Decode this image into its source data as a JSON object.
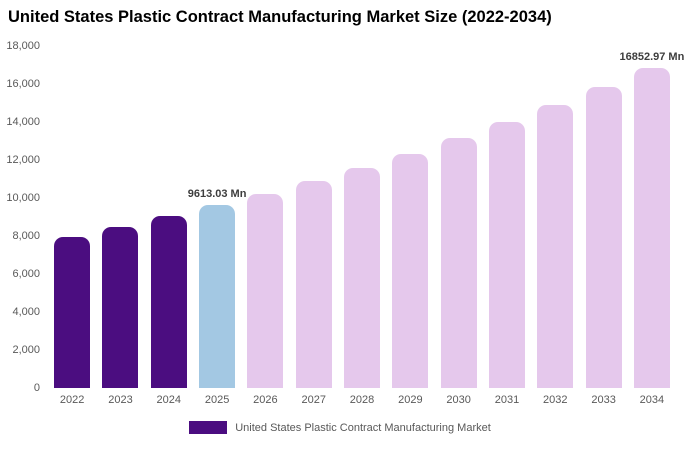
{
  "title": "United States Plastic Contract Manufacturing Market Size (2022-2034)",
  "legend": {
    "label": "United States Plastic Contract Manufacturing Market",
    "color": "#4B0D80"
  },
  "colors": {
    "historical_bar": "#4B0D80",
    "highlight_bar": "#A3C8E3",
    "forecast_bar": "#E5C8EC",
    "axis_text": "#595959",
    "background": "#ffffff"
  },
  "chart_data": {
    "type": "bar",
    "title": "United States Plastic Contract Manufacturing Market Size (2022-2034)",
    "xlabel": "",
    "ylabel": "",
    "categories": [
      "2022",
      "2023",
      "2024",
      "2025",
      "2026",
      "2027",
      "2028",
      "2029",
      "2030",
      "2031",
      "2032",
      "2033",
      "2034"
    ],
    "values": [
      7970,
      8485,
      9030,
      9613.03,
      10232,
      10891,
      11592,
      12339,
      13133,
      13979,
      14879,
      15837,
      16852.97
    ],
    "bar_colors": [
      "#4B0D80",
      "#4B0D80",
      "#4B0D80",
      "#A3C8E3",
      "#E5C8EC",
      "#E5C8EC",
      "#E5C8EC",
      "#E5C8EC",
      "#E5C8EC",
      "#E5C8EC",
      "#E5C8EC",
      "#E5C8EC",
      "#E5C8EC"
    ],
    "annotations": [
      {
        "category": "2025",
        "text": "9613.03 Mn"
      },
      {
        "category": "2034",
        "text": "16852.97 Mn"
      }
    ],
    "ylim": [
      0,
      18000
    ],
    "ytick_values": [
      18000,
      16000,
      14000,
      12000,
      10000,
      8000,
      6000,
      4000,
      2000,
      0
    ],
    "ytick_labels": [
      "18,000",
      "16,000",
      "14,000",
      "12,000",
      "10,000",
      "8,000",
      "6,000",
      "4,000",
      "2,000",
      "0"
    ],
    "grid": false,
    "legend_position": "bottom",
    "legend_entries": [
      "United States Plastic Contract Manufacturing Market"
    ],
    "unit": "Mn"
  }
}
